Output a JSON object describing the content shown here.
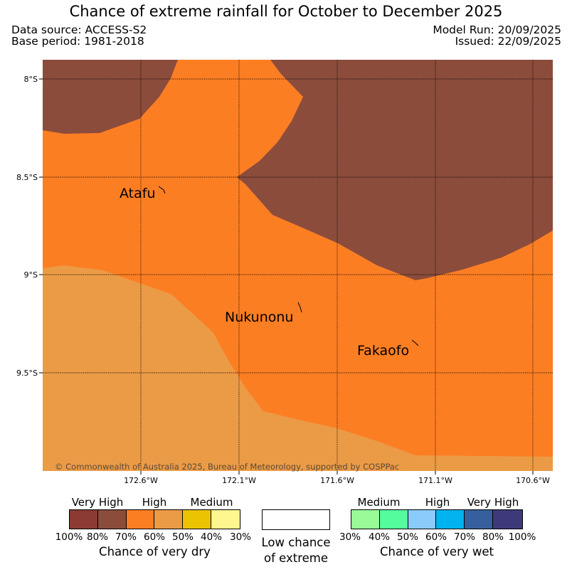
{
  "title": "Chance of extreme rainfall for October to December 2025",
  "meta": {
    "data_source": "Data source: ACCESS-S2",
    "base_period": "Base period: 1981-2018",
    "model_run": "Model Run: 20/09/2025",
    "issued": "Issued: 22/09/2025"
  },
  "map": {
    "lat_labels": [
      "8°S",
      "8.5°S",
      "9°S",
      "9.5°S"
    ],
    "lon_labels": [
      "172.6°W",
      "172.1°W",
      "171.6°W",
      "171.1°W",
      "170.6°W"
    ],
    "places": [
      "Atafu",
      "Nukunonu",
      "Fakaofo"
    ],
    "copyright": "© Commonwealth of Australia 2025, Bureau of Meteorology, supported by COSPPac",
    "region_colors": {
      "very_high_dry": "#8b4c3c",
      "high_dry": "#fc7e23",
      "medium_dry": "#eb9b46"
    }
  },
  "legend": {
    "dry": {
      "categories": [
        "Very High",
        "High",
        "Medium"
      ],
      "ticks": [
        "100%",
        "80%",
        "70%",
        "60%",
        "50%",
        "40%",
        "30%"
      ],
      "colors": [
        "#8b3b33",
        "#8b4c3c",
        "#fc7e23",
        "#eb9b46",
        "#ecc300",
        "#fff68f"
      ],
      "title": "Chance of very dry"
    },
    "low": {
      "label_line1": "Low chance",
      "label_line2": "of extreme",
      "color": "#ffffff"
    },
    "wet": {
      "categories": [
        "Medium",
        "High",
        "Very High"
      ],
      "ticks": [
        "30%",
        "40%",
        "50%",
        "60%",
        "70%",
        "80%",
        "100%"
      ],
      "colors": [
        "#98fb98",
        "#54fc9e",
        "#8acbfb",
        "#00b2ee",
        "#36609d",
        "#3e3a7a"
      ],
      "title": "Chance of very wet"
    }
  }
}
